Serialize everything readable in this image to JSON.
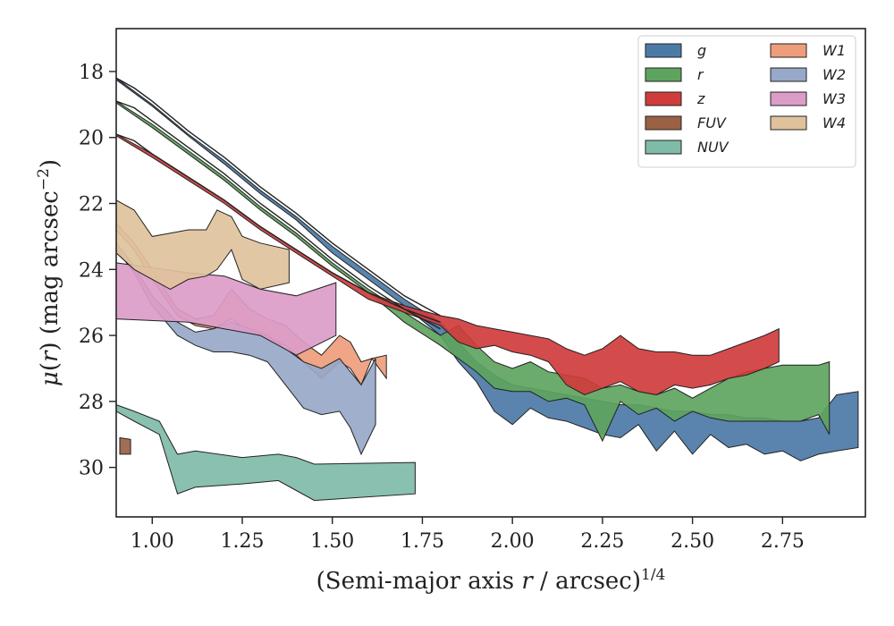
{
  "chart_data": {
    "type": "area",
    "xlabel": "(Semi-major axis r / arcsec)^1/4",
    "ylabel": "μ(r) (mag arcsec^-2)",
    "xlim": [
      0.9,
      2.98
    ],
    "ylim": [
      31.5,
      16.7
    ],
    "y_inverted": true,
    "grid": false,
    "legend_position": "top-right",
    "legend_columns": 2,
    "x_ticks": [
      "1.00",
      "1.25",
      "1.50",
      "1.75",
      "2.00",
      "2.25",
      "2.50",
      "2.75"
    ],
    "y_ticks": [
      "18",
      "20",
      "22",
      "24",
      "26",
      "28",
      "30"
    ],
    "series": [
      {
        "name": "g",
        "color": "#4c7aa7",
        "x": [
          0.9,
          1.0,
          1.1,
          1.2,
          1.3,
          1.4,
          1.5,
          1.6,
          1.7,
          1.8,
          1.85,
          1.9,
          1.95,
          2.0,
          2.05,
          2.1,
          2.15,
          2.2,
          2.25,
          2.3,
          2.35,
          2.4,
          2.45,
          2.5,
          2.55,
          2.6,
          2.65,
          2.7,
          2.75,
          2.8,
          2.85,
          2.9,
          2.96
        ],
        "lo": [
          18.2,
          19.0,
          19.9,
          20.7,
          21.6,
          22.4,
          23.3,
          24.1,
          24.9,
          25.6,
          26.2,
          26.8,
          27.2,
          27.5,
          27.6,
          27.7,
          27.8,
          27.9,
          28.0,
          28.1,
          28.1,
          28.2,
          28.3,
          28.3,
          28.4,
          28.4,
          28.5,
          28.5,
          28.6,
          28.6,
          28.5,
          27.8,
          27.7
        ],
        "hi": [
          18.25,
          19.05,
          19.95,
          20.8,
          21.7,
          22.5,
          23.5,
          24.3,
          25.1,
          26.0,
          26.8,
          27.4,
          28.3,
          28.7,
          28.2,
          28.5,
          28.6,
          28.8,
          29.0,
          29.1,
          28.7,
          29.5,
          28.9,
          29.6,
          29.0,
          29.4,
          29.3,
          29.6,
          29.5,
          29.8,
          29.6,
          29.5,
          29.4
        ]
      },
      {
        "name": "r",
        "color": "#5ea45e",
        "x": [
          0.9,
          1.0,
          1.1,
          1.2,
          1.3,
          1.4,
          1.5,
          1.6,
          1.7,
          1.8,
          1.85,
          1.9,
          1.95,
          2.0,
          2.05,
          2.1,
          2.15,
          2.2,
          2.25,
          2.3,
          2.35,
          2.4,
          2.45,
          2.5,
          2.55,
          2.6,
          2.65,
          2.7,
          2.75,
          2.8,
          2.85,
          2.88
        ],
        "lo": [
          18.9,
          19.6,
          20.4,
          21.2,
          22.1,
          22.9,
          23.8,
          24.6,
          25.3,
          26.0,
          25.7,
          26.3,
          26.8,
          27.0,
          26.8,
          27.1,
          27.2,
          27.3,
          27.6,
          27.5,
          27.7,
          27.8,
          27.6,
          27.9,
          27.6,
          27.3,
          27.1,
          27.0,
          26.9,
          26.9,
          26.9,
          26.8
        ],
        "hi": [
          18.95,
          19.7,
          20.5,
          21.3,
          22.2,
          23.0,
          23.9,
          24.7,
          25.6,
          26.3,
          26.7,
          27.1,
          27.6,
          27.7,
          27.7,
          28.0,
          27.9,
          28.1,
          29.2,
          28.0,
          28.4,
          28.2,
          28.6,
          28.3,
          28.5,
          28.6,
          28.6,
          28.6,
          28.6,
          28.6,
          28.4,
          29.0
        ]
      },
      {
        "name": "z",
        "color": "#d03c3c",
        "x": [
          0.9,
          1.0,
          1.1,
          1.2,
          1.3,
          1.4,
          1.5,
          1.6,
          1.7,
          1.8,
          1.85,
          1.9,
          1.95,
          2.0,
          2.05,
          2.1,
          2.15,
          2.2,
          2.25,
          2.3,
          2.35,
          2.4,
          2.45,
          2.5,
          2.55,
          2.6,
          2.65,
          2.7,
          2.74
        ],
        "lo": [
          19.9,
          20.5,
          21.2,
          21.9,
          22.7,
          23.4,
          24.1,
          24.7,
          25.1,
          25.4,
          25.5,
          25.7,
          25.8,
          25.9,
          26.0,
          26.1,
          26.4,
          26.6,
          26.4,
          26.0,
          26.4,
          26.5,
          26.5,
          26.6,
          26.6,
          26.4,
          26.2,
          26.0,
          25.8
        ],
        "hi": [
          19.95,
          20.6,
          21.3,
          22.0,
          22.8,
          23.5,
          24.2,
          24.9,
          25.3,
          25.7,
          26.2,
          26.4,
          26.3,
          26.5,
          26.6,
          26.8,
          27.5,
          27.8,
          27.6,
          27.4,
          27.7,
          27.8,
          27.5,
          27.6,
          27.5,
          27.3,
          27.2,
          27.0,
          26.8
        ]
      },
      {
        "name": "FUV",
        "color": "#9a6144",
        "x": [
          0.91,
          0.94
        ],
        "lo": [
          29.1,
          29.15
        ],
        "hi": [
          29.6,
          29.6
        ]
      },
      {
        "name": "NUV",
        "color": "#7fbba8",
        "x": [
          0.9,
          0.95,
          1.02,
          1.07,
          1.12,
          1.25,
          1.35,
          1.4,
          1.45,
          1.73
        ],
        "lo": [
          28.1,
          28.3,
          28.6,
          29.6,
          29.5,
          29.7,
          29.6,
          29.7,
          29.9,
          29.85
        ],
        "hi": [
          28.3,
          28.6,
          29.0,
          30.8,
          30.6,
          30.5,
          30.4,
          30.7,
          31.0,
          30.8
        ]
      },
      {
        "name": "W1",
        "color": "#ee9d7c",
        "x": [
          0.9,
          0.95,
          1.0,
          1.07,
          1.12,
          1.17,
          1.22,
          1.27,
          1.32,
          1.37,
          1.42,
          1.47,
          1.52,
          1.55,
          1.58,
          1.61,
          1.65
        ],
        "lo": [
          22.6,
          23.2,
          24.0,
          25.2,
          25.5,
          25.4,
          24.6,
          25.2,
          25.5,
          25.7,
          26.2,
          26.6,
          26.0,
          26.2,
          26.8,
          26.7,
          26.6
        ],
        "hi": [
          22.8,
          23.4,
          24.3,
          25.4,
          25.7,
          25.8,
          25.5,
          25.9,
          26.1,
          26.3,
          26.8,
          27.3,
          26.8,
          27.0,
          27.5,
          26.7,
          27.3
        ]
      },
      {
        "name": "W2",
        "color": "#98a8c8",
        "x": [
          0.9,
          0.95,
          1.0,
          1.07,
          1.12,
          1.17,
          1.22,
          1.27,
          1.32,
          1.37,
          1.42,
          1.47,
          1.52,
          1.55,
          1.58,
          1.62
        ],
        "lo": [
          23.2,
          23.9,
          24.8,
          25.6,
          25.9,
          25.8,
          25.6,
          25.8,
          26.0,
          26.4,
          26.8,
          27.0,
          26.7,
          27.1,
          27.5,
          26.7
        ],
        "hi": [
          23.4,
          24.1,
          25.1,
          26.0,
          26.3,
          26.5,
          26.5,
          26.6,
          26.8,
          27.5,
          28.2,
          28.4,
          28.3,
          28.8,
          29.6,
          28.7
        ]
      },
      {
        "name": "W3",
        "color": "#dc9cc8",
        "x": [
          0.9,
          1.1,
          1.2,
          1.3,
          1.4,
          1.51
        ],
        "lo": [
          23.8,
          24.1,
          24.2,
          24.6,
          24.8,
          24.4
        ],
        "hi": [
          25.5,
          25.6,
          25.8,
          26.0,
          26.6,
          26.0
        ]
      },
      {
        "name": "W4",
        "color": "#dfc29c",
        "x": [
          0.9,
          0.95,
          1.0,
          1.05,
          1.1,
          1.15,
          1.18,
          1.22,
          1.25,
          1.3,
          1.38
        ],
        "lo": [
          21.9,
          22.2,
          23.0,
          22.9,
          22.8,
          22.8,
          22.2,
          22.4,
          23.0,
          23.2,
          23.4
        ],
        "hi": [
          23.5,
          24.0,
          24.3,
          24.6,
          24.3,
          24.2,
          24.0,
          23.4,
          24.3,
          24.6,
          24.4
        ]
      }
    ],
    "profiles": [
      {
        "x": [
          0.9,
          0.95,
          1.0,
          1.1,
          1.2,
          1.3,
          1.4,
          1.5,
          1.6,
          1.7,
          1.8
        ],
        "y": [
          18.2,
          18.5,
          18.9,
          19.8,
          20.6,
          21.5,
          22.3,
          23.2,
          24.0,
          24.8,
          25.4
        ]
      },
      {
        "x": [
          0.9,
          0.95,
          1.0,
          1.1,
          1.2,
          1.3,
          1.4,
          1.5,
          1.6,
          1.7,
          1.8
        ],
        "y": [
          18.9,
          19.1,
          19.5,
          20.3,
          21.1,
          22.0,
          22.8,
          23.7,
          24.5,
          25.2,
          25.8
        ]
      },
      {
        "x": [
          0.9,
          0.95,
          1.0,
          1.1,
          1.2,
          1.3,
          1.4,
          1.5,
          1.6,
          1.7,
          1.8
        ],
        "y": [
          19.9,
          20.1,
          20.5,
          21.2,
          21.9,
          22.7,
          23.4,
          24.1,
          24.7,
          25.2,
          25.6
        ]
      }
    ]
  },
  "legend": {
    "items": [
      {
        "label": "g",
        "color": "#4c7aa7"
      },
      {
        "label": "r",
        "color": "#5ea45e"
      },
      {
        "label": "z",
        "color": "#d03c3c"
      },
      {
        "label": "FUV",
        "color": "#9a6144"
      },
      {
        "label": "NUV",
        "color": "#7fbba8"
      },
      {
        "label": "W1",
        "color": "#ee9d7c"
      },
      {
        "label": "W2",
        "color": "#98a8c8"
      },
      {
        "label": "W3",
        "color": "#dc9cc8"
      },
      {
        "label": "W4",
        "color": "#dfc29c"
      }
    ]
  }
}
